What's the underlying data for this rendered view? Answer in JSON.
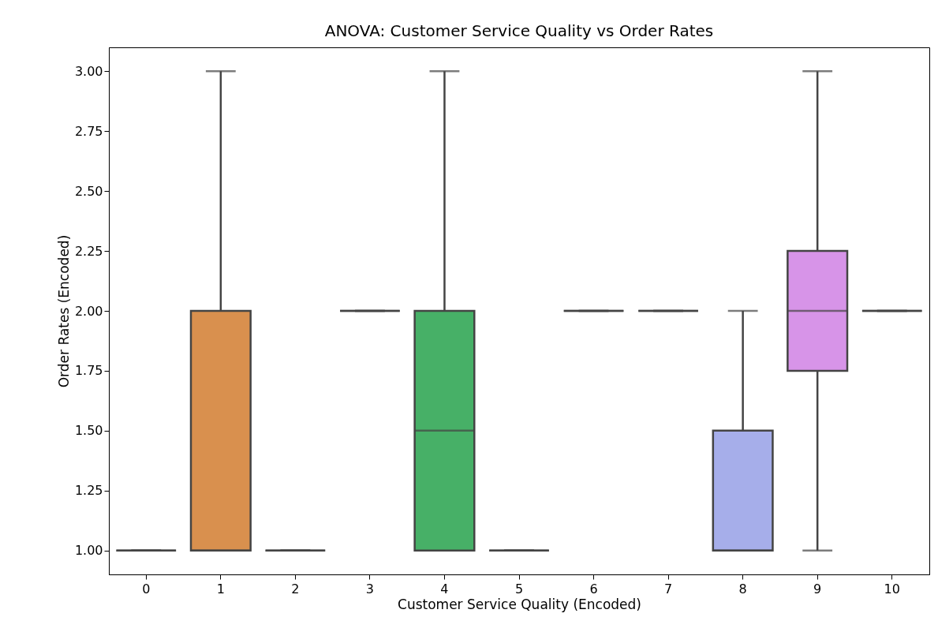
{
  "chart_data": {
    "type": "box",
    "title": "ANOVA: Customer Service Quality vs Order Rates",
    "xlabel": "Customer Service Quality (Encoded)",
    "ylabel": "Order Rates (Encoded)",
    "categories": [
      "0",
      "1",
      "2",
      "3",
      "4",
      "5",
      "6",
      "7",
      "8",
      "9",
      "10"
    ],
    "colors": [
      "#444444",
      "#d9904e",
      "#444444",
      "#444444",
      "#47b067",
      "#444444",
      "#444444",
      "#444444",
      "#a6aeea",
      "#d794e8",
      "#444444"
    ],
    "boxes": [
      {
        "low": 1,
        "q1": 1,
        "median": 1,
        "q3": 1,
        "high": 1
      },
      {
        "low": 1,
        "q1": 1,
        "median": 1,
        "q3": 2,
        "high": 3
      },
      {
        "low": 1,
        "q1": 1,
        "median": 1,
        "q3": 1,
        "high": 1
      },
      {
        "low": 2,
        "q1": 2,
        "median": 2,
        "q3": 2,
        "high": 2
      },
      {
        "low": 1,
        "q1": 1,
        "median": 1.5,
        "q3": 2,
        "high": 3
      },
      {
        "low": 1,
        "q1": 1,
        "median": 1,
        "q3": 1,
        "high": 1
      },
      {
        "low": 2,
        "q1": 2,
        "median": 2,
        "q3": 2,
        "high": 2
      },
      {
        "low": 2,
        "q1": 2,
        "median": 2,
        "q3": 2,
        "high": 2
      },
      {
        "low": 1,
        "q1": 1,
        "median": 1,
        "q3": 1.5,
        "high": 2
      },
      {
        "low": 1,
        "q1": 1.75,
        "median": 2,
        "q3": 2.25,
        "high": 3
      },
      {
        "low": 2,
        "q1": 2,
        "median": 2,
        "q3": 2,
        "high": 2
      }
    ],
    "ylim": [
      0.9,
      3.1
    ],
    "yticks": [
      {
        "value": 1,
        "label": "1.00"
      },
      {
        "value": 1.25,
        "label": "1.25"
      },
      {
        "value": 1.5,
        "label": "1.50"
      },
      {
        "value": 1.75,
        "label": "1.75"
      },
      {
        "value": 2,
        "label": "2.00"
      },
      {
        "value": 2.25,
        "label": "2.25"
      },
      {
        "value": 2.5,
        "label": "2.50"
      },
      {
        "value": 2.75,
        "label": "2.75"
      },
      {
        "value": 3,
        "label": "3.00"
      }
    ]
  }
}
